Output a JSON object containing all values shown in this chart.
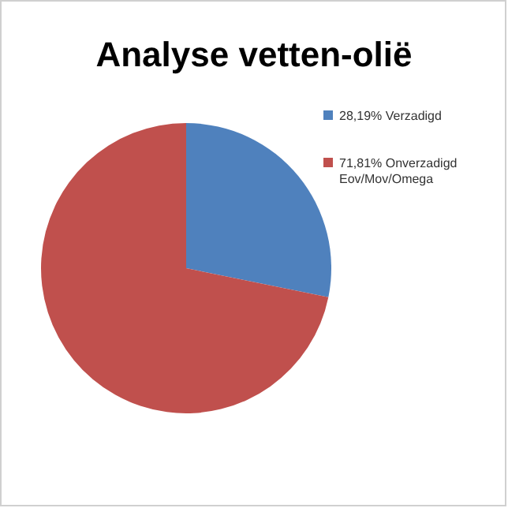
{
  "chart_data": {
    "type": "pie",
    "title": "Analyse vetten-olië",
    "categories": [
      "28,19% Verzadigd",
      "71,81% Onverzadigd Eov/Mov/Omega"
    ],
    "values": [
      28.19,
      71.81
    ],
    "colors": [
      "#4f81bd",
      "#c0504d"
    ],
    "legend": "right"
  }
}
